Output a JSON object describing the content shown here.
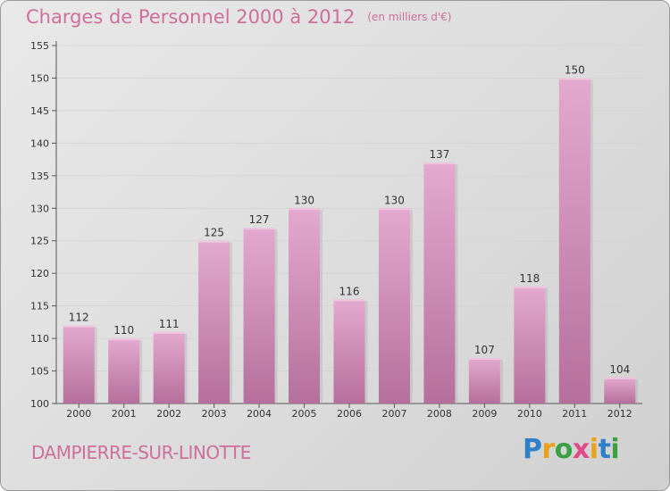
{
  "header": {
    "title": "Charges de Personnel 2000 à 2012",
    "subtitle": "(en milliers d'€)"
  },
  "footer": {
    "commune": "DAMPIERRE-SUR-LINOTTE",
    "logo": {
      "letters": [
        "P",
        "r",
        "o",
        "x",
        "i",
        "t",
        "i"
      ],
      "colors": [
        "#2f80c9",
        "#e8a21a",
        "#3aa044",
        "#e04a8a",
        "#e8a21a",
        "#2f80c9",
        "#3aa044"
      ]
    }
  },
  "colors": {
    "bar": "#d58fbc",
    "bar_light": "#e4a9cf",
    "bar_dark": "#b56f9c",
    "axis": "#555555",
    "title": "#d06e9b"
  },
  "chart_data": {
    "type": "bar",
    "title": "Charges de Personnel 2000 à 2012",
    "subtitle": "(en milliers d'€)",
    "categories": [
      "2000",
      "2001",
      "2002",
      "2003",
      "2004",
      "2005",
      "2006",
      "2007",
      "2008",
      "2009",
      "2010",
      "2011",
      "2012"
    ],
    "values": [
      112,
      110,
      111,
      125,
      127,
      130,
      116,
      130,
      137,
      107,
      118,
      150,
      104
    ],
    "ylim": [
      100,
      155
    ],
    "yticks": [
      100,
      105,
      110,
      115,
      120,
      125,
      130,
      135,
      140,
      145,
      150,
      155
    ],
    "xlabel": "",
    "ylabel": ""
  }
}
